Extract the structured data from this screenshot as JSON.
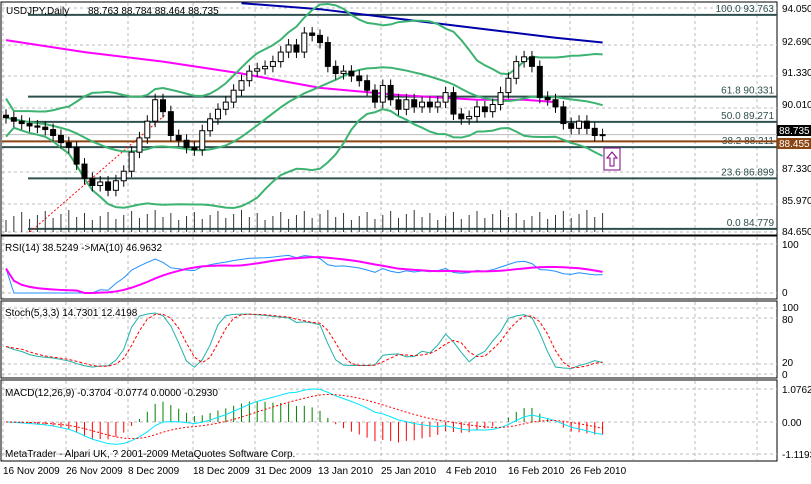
{
  "header": {
    "symbol_tf": "USDJPY,Daily",
    "ohlc": "88.763 88.784 88.464 88.735"
  },
  "price_axis": [
    "94.050",
    "92.690",
    "91.330",
    "90.010",
    "87.330",
    "85.970",
    "84.650"
  ],
  "bid_label": "88.735",
  "line_label": "88.455",
  "fib_levels": [
    {
      "label": "100.0 93.763",
      "price": 93.763
    },
    {
      "label": "61.8 90.331",
      "price": 90.331
    },
    {
      "label": "50.0 89.271",
      "price": 89.271
    },
    {
      "label": "38.2 88.211",
      "price": 88.211
    },
    {
      "label": "23.6 86.899",
      "price": 86.899
    },
    {
      "label": "0.0 84.779",
      "price": 84.779
    }
  ],
  "rsi": {
    "label": "RSI(14) 38.5249  ->MA(10) 46.9632",
    "axis": [
      "100",
      "0"
    ]
  },
  "stoch": {
    "label": "Stoch(5,3,3) 14.7301 12.4198",
    "axis": [
      "100",
      "80",
      "20",
      "0"
    ]
  },
  "macd": {
    "label": "MACD(12,26,9) -0.3704 -0.0774 0.0000 -0.2930",
    "axis": [
      "1.0762",
      "0.00",
      "-1.1193"
    ]
  },
  "copyright": "MetaTrader - Alpari UK, ? 2001-2009 MetaQuotes Software Corp.",
  "dates": [
    "16 Nov 2009",
    "26 Nov 2009",
    "8 Dec 2009",
    "18 Dec 2009",
    "31 Dec 2009",
    "13 Jan 2010",
    "25 Jan 2010",
    "4 Feb 2010",
    "16 Feb 2010",
    "26 Feb 2010"
  ],
  "colors": {
    "bid": "#000000",
    "line": "#8b4513",
    "fib": "#2f4f4f",
    "bollinger": "#3cb371",
    "ma_long": "#0000aa",
    "ma_mid": "#ff00ff",
    "rsi": "#1e90ff",
    "rsi_ma": "#ff00ff",
    "stoch_main": "#20b2aa",
    "stoch_signal": "#ff0000",
    "macd_line": "#00e5ff",
    "macd_signal": "#ff0000",
    "hist_up": "#008000",
    "hist_down": "#ff0000",
    "arrow": "#800080"
  },
  "chart_data": {
    "type": "candlestick",
    "symbol": "USDJPY",
    "timeframe": "Daily",
    "ylim": [
      84.65,
      94.05
    ],
    "closes": [
      89.45,
      89.3,
      89.2,
      89.1,
      89.05,
      88.95,
      88.7,
      88.4,
      88.2,
      87.5,
      86.9,
      86.6,
      86.75,
      86.4,
      86.8,
      87.2,
      88.0,
      88.6,
      89.3,
      90.2,
      89.7,
      88.7,
      88.5,
      88.2,
      88.1,
      88.9,
      89.4,
      89.8,
      90.1,
      90.6,
      91.0,
      91.4,
      91.5,
      91.6,
      91.8,
      92.2,
      92.5,
      92.2,
      93.0,
      92.9,
      92.6,
      91.6,
      91.3,
      91.4,
      91.2,
      91.0,
      90.6,
      90.1,
      90.8,
      90.2,
      89.8,
      90.2,
      89.9,
      90.1,
      89.9,
      90.1,
      90.5,
      89.6,
      89.4,
      89.5,
      89.9,
      89.7,
      90.0,
      90.5,
      91.1,
      91.8,
      92.0,
      91.6,
      90.3,
      90.2,
      89.9,
      89.2,
      89.0,
      89.3,
      89.0,
      88.7,
      88.735
    ],
    "ma_long": [
      [
        30,
        94.25
      ],
      [
        40,
        94.0
      ],
      [
        50,
        93.6
      ],
      [
        60,
        93.2
      ],
      [
        70,
        92.8
      ],
      [
        76,
        92.6
      ]
    ],
    "ma_mid": [
      [
        0,
        92.7
      ],
      [
        10,
        92.2
      ],
      [
        20,
        91.8
      ],
      [
        30,
        91.3
      ],
      [
        40,
        90.7
      ],
      [
        50,
        90.4
      ],
      [
        60,
        90.2
      ],
      [
        66,
        90.2
      ],
      [
        70,
        90.1
      ]
    ],
    "grid": true
  }
}
